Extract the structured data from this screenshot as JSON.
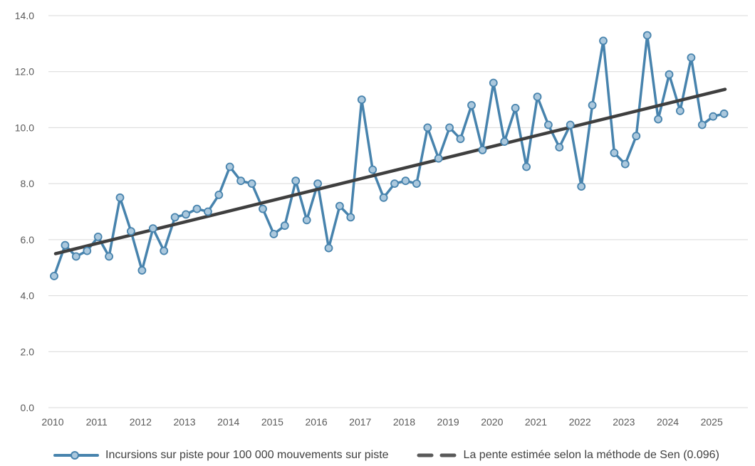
{
  "chart_data": {
    "type": "line",
    "title": "",
    "grid": "horizontal",
    "legend_position": "bottom",
    "x_axis": {
      "tick_labels": [
        "2010",
        "2011",
        "2012",
        "2013",
        "2014",
        "2015",
        "2016",
        "2017",
        "2018",
        "2019",
        "2020",
        "2021",
        "2022",
        "2023",
        "2024",
        "2025"
      ]
    },
    "y_axis": {
      "min": 0,
      "max": 14,
      "step": 2,
      "tick_labels": [
        "0.0",
        "2.0",
        "4.0",
        "6.0",
        "8.0",
        "10.0",
        "12.0",
        "14.0"
      ]
    },
    "categories": [
      "2010 T1",
      "2010 T2",
      "2010 T3",
      "2010 T4",
      "2011 T1",
      "2011 T2",
      "2011 T3",
      "2011 T4",
      "2012 T1",
      "2012 T2",
      "2012 T3",
      "2012 T4",
      "2013 T1",
      "2013 T2",
      "2013 T3",
      "2013 T4",
      "2014 T1",
      "2014 T2",
      "2014 T3",
      "2014 T4",
      "2015 T1",
      "2015 T2",
      "2015 T3",
      "2015 T4",
      "2016 T1",
      "2016 T2",
      "2016 T3",
      "2016 T4",
      "2017 T1",
      "2017 T2",
      "2017 T3",
      "2017 T4",
      "2018 T1",
      "2018 T2",
      "2018 T3",
      "2018 T4",
      "2019 T1",
      "2019 T2",
      "2019 T3",
      "2019 T4",
      "2020 T1",
      "2020 T2",
      "2020 T3",
      "2020 T4",
      "2021 T1",
      "2021 T2",
      "2021 T3",
      "2021 T4",
      "2022 T1",
      "2022 T2",
      "2022 T3",
      "2022 T4",
      "2023 T1",
      "2023 T2",
      "2023 T3",
      "2023 T4",
      "2024 T1",
      "2024 T2",
      "2024 T3",
      "2024 T4",
      "2025 T1",
      "2025 T2"
    ],
    "series": [
      {
        "name": "Incursions sur piste pour 100 000 mouvements sur piste",
        "type": "line-markers",
        "color": "#4783ad",
        "marker_fill": "#abc8dd",
        "values": [
          4.7,
          5.8,
          5.4,
          5.6,
          6.1,
          5.4,
          7.5,
          6.3,
          4.9,
          6.4,
          5.6,
          6.8,
          6.9,
          7.1,
          7.0,
          7.6,
          8.6,
          8.1,
          8.0,
          7.1,
          6.2,
          6.5,
          8.1,
          6.7,
          8.0,
          5.7,
          7.2,
          6.8,
          11.0,
          8.5,
          7.5,
          8.0,
          8.1,
          8.0,
          10.0,
          8.9,
          10.0,
          9.6,
          10.8,
          9.2,
          11.6,
          9.5,
          10.7,
          8.6,
          11.1,
          10.1,
          9.3,
          10.1,
          7.9,
          10.8,
          13.1,
          9.1,
          8.7,
          9.7,
          13.3,
          10.3,
          11.9,
          10.6,
          12.5,
          10.1,
          10.4,
          10.5
        ]
      },
      {
        "name": "La pente estimée selon la méthode de Sen (0.096)",
        "type": "trend",
        "color": "#3f3f3f",
        "slope_per_quarter": 0.096,
        "start_value": 5.5,
        "end_value": 11.37
      }
    ],
    "styles": {
      "gridline_color": "#d9d9d9",
      "tick_text_color": "#595959",
      "legend_text_color": "#404040"
    }
  }
}
